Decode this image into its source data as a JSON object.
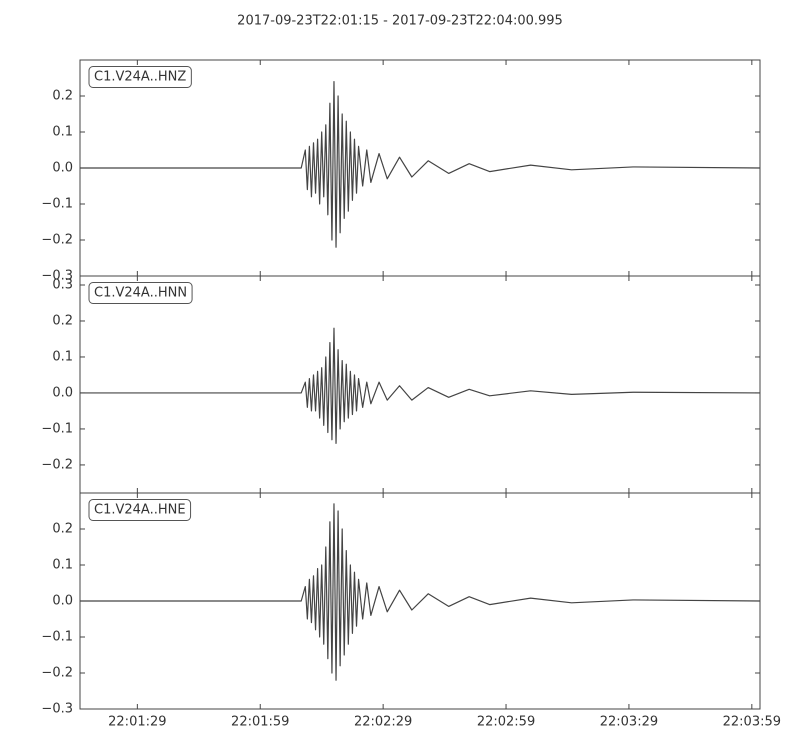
{
  "title": "2017-09-23T22:01:15  -  2017-09-23T22:04:00.995",
  "chart_data": [
    {
      "type": "line",
      "label": "C1.V24A..HNZ",
      "xlim": [
        "22:01:15",
        "22:04:00.995"
      ],
      "ylim": [
        -0.3,
        0.3
      ],
      "yticks": [
        {
          "value": -0.3,
          "label": "−0.3"
        },
        {
          "value": -0.2,
          "label": "−0.2"
        },
        {
          "value": -0.1,
          "label": "−0.1"
        },
        {
          "value": 0,
          "label": "0.0"
        },
        0.1,
        0.2
      ],
      "x": [
        "22:01:15",
        "22:02:09",
        "22:02:10",
        "22:02:10.5",
        "22:02:11",
        "22:02:11.5",
        "22:02:12",
        "22:02:12.5",
        "22:02:13",
        "22:02:13.5",
        "22:02:14",
        "22:02:14.5",
        "22:02:15",
        "22:02:15.5",
        "22:02:16",
        "22:02:16.5",
        "22:02:17",
        "22:02:17.5",
        "22:02:18",
        "22:02:18.5",
        "22:02:19",
        "22:02:19.5",
        "22:02:20",
        "22:02:20.5",
        "22:02:21",
        "22:02:21.5",
        "22:02:22",
        "22:02:22.5",
        "22:02:23",
        "22:02:24",
        "22:02:25",
        "22:02:26",
        "22:02:28",
        "22:02:30",
        "22:02:33",
        "22:02:36",
        "22:02:40",
        "22:02:45",
        "22:02:50",
        "22:02:55",
        "22:03:05",
        "22:03:15",
        "22:03:30",
        "22:04:00.995"
      ],
      "series": [
        {
          "color": "#444444",
          "values": [
            0,
            0,
            0.05,
            -0.06,
            0.06,
            -0.08,
            0.07,
            -0.07,
            0.08,
            -0.1,
            0.1,
            -0.08,
            0.12,
            -0.13,
            0.18,
            -0.2,
            0.24,
            -0.22,
            0.2,
            -0.18,
            0.15,
            -0.14,
            0.13,
            -0.12,
            0.1,
            -0.09,
            0.08,
            -0.07,
            0.06,
            -0.05,
            0.05,
            -0.04,
            0.04,
            -0.03,
            0.03,
            -0.025,
            0.02,
            -0.015,
            0.012,
            -0.01,
            0.008,
            -0.005,
            0.003,
            0
          ]
        }
      ]
    },
    {
      "type": "line",
      "label": "C1.V24A..HNN",
      "xlim": [
        "22:01:15",
        "22:04:00.995"
      ],
      "ylim": [
        -0.278,
        0.325
      ],
      "yticks": [
        {
          "value": -0.2,
          "label": "−0.2"
        },
        {
          "value": -0.1,
          "label": "−0.1"
        },
        {
          "value": 0,
          "label": "0.0"
        },
        0.1,
        0.2,
        0.3
      ],
      "x": [
        "22:01:15",
        "22:02:09",
        "22:02:10",
        "22:02:10.5",
        "22:02:11",
        "22:02:11.5",
        "22:02:12",
        "22:02:12.5",
        "22:02:13",
        "22:02:13.5",
        "22:02:14",
        "22:02:14.5",
        "22:02:15",
        "22:02:15.5",
        "22:02:16",
        "22:02:16.5",
        "22:02:17",
        "22:02:17.5",
        "22:02:18",
        "22:02:18.5",
        "22:02:19",
        "22:02:19.5",
        "22:02:20",
        "22:02:20.5",
        "22:02:21",
        "22:02:21.5",
        "22:02:22",
        "22:02:22.5",
        "22:02:23",
        "22:02:24",
        "22:02:25",
        "22:02:26",
        "22:02:28",
        "22:02:30",
        "22:02:33",
        "22:02:36",
        "22:02:40",
        "22:02:45",
        "22:02:50",
        "22:02:55",
        "22:03:05",
        "22:03:15",
        "22:03:30",
        "22:04:00.995"
      ],
      "series": [
        {
          "color": "#444444",
          "values": [
            0,
            0,
            0.03,
            -0.04,
            0.04,
            -0.05,
            0.05,
            -0.05,
            0.06,
            -0.07,
            0.07,
            -0.09,
            0.1,
            -0.11,
            0.14,
            -0.13,
            0.18,
            -0.14,
            0.12,
            -0.1,
            0.09,
            -0.08,
            0.08,
            -0.07,
            0.06,
            -0.06,
            0.05,
            -0.05,
            0.04,
            -0.04,
            0.03,
            -0.03,
            0.03,
            -0.02,
            0.02,
            -0.02,
            0.015,
            -0.012,
            0.01,
            -0.008,
            0.006,
            -0.004,
            0.002,
            0
          ]
        }
      ]
    },
    {
      "type": "line",
      "label": "C1.V24A..HNE",
      "xlim": [
        "22:01:15",
        "22:04:00.995"
      ],
      "ylim": [
        -0.3,
        0.3
      ],
      "yticks": [
        {
          "value": -0.3,
          "label": "−0.3"
        },
        {
          "value": -0.2,
          "label": "−0.2"
        },
        {
          "value": -0.1,
          "label": "−0.1"
        },
        {
          "value": 0,
          "label": "0.0"
        },
        0.1,
        0.2
      ],
      "xticks": [
        "22:01:29",
        "22:01:59",
        "22:02:29",
        "22:02:59",
        "22:03:29",
        "22:03:59"
      ],
      "x": [
        "22:01:15",
        "22:02:09",
        "22:02:10",
        "22:02:10.5",
        "22:02:11",
        "22:02:11.5",
        "22:02:12",
        "22:02:12.5",
        "22:02:13",
        "22:02:13.5",
        "22:02:14",
        "22:02:14.5",
        "22:02:15",
        "22:02:15.5",
        "22:02:16",
        "22:02:16.5",
        "22:02:17",
        "22:02:17.5",
        "22:02:18",
        "22:02:18.5",
        "22:02:19",
        "22:02:19.5",
        "22:02:20",
        "22:02:20.5",
        "22:02:21",
        "22:02:21.5",
        "22:02:22",
        "22:02:22.5",
        "22:02:23",
        "22:02:24",
        "22:02:25",
        "22:02:26",
        "22:02:28",
        "22:02:30",
        "22:02:33",
        "22:02:36",
        "22:02:40",
        "22:02:45",
        "22:02:50",
        "22:02:55",
        "22:03:05",
        "22:03:15",
        "22:03:30",
        "22:04:00.995"
      ],
      "series": [
        {
          "color": "#444444",
          "values": [
            0,
            0,
            0.04,
            -0.05,
            0.06,
            -0.06,
            0.07,
            -0.08,
            0.09,
            -0.1,
            0.1,
            -0.12,
            0.15,
            -0.16,
            0.22,
            -0.2,
            0.27,
            -0.22,
            0.25,
            -0.18,
            0.2,
            -0.15,
            0.14,
            -0.12,
            0.1,
            -0.09,
            0.08,
            -0.07,
            0.06,
            -0.05,
            0.05,
            -0.04,
            0.04,
            -0.03,
            0.03,
            -0.025,
            0.02,
            -0.015,
            0.012,
            -0.01,
            0.008,
            -0.005,
            0.003,
            0
          ]
        }
      ]
    }
  ]
}
